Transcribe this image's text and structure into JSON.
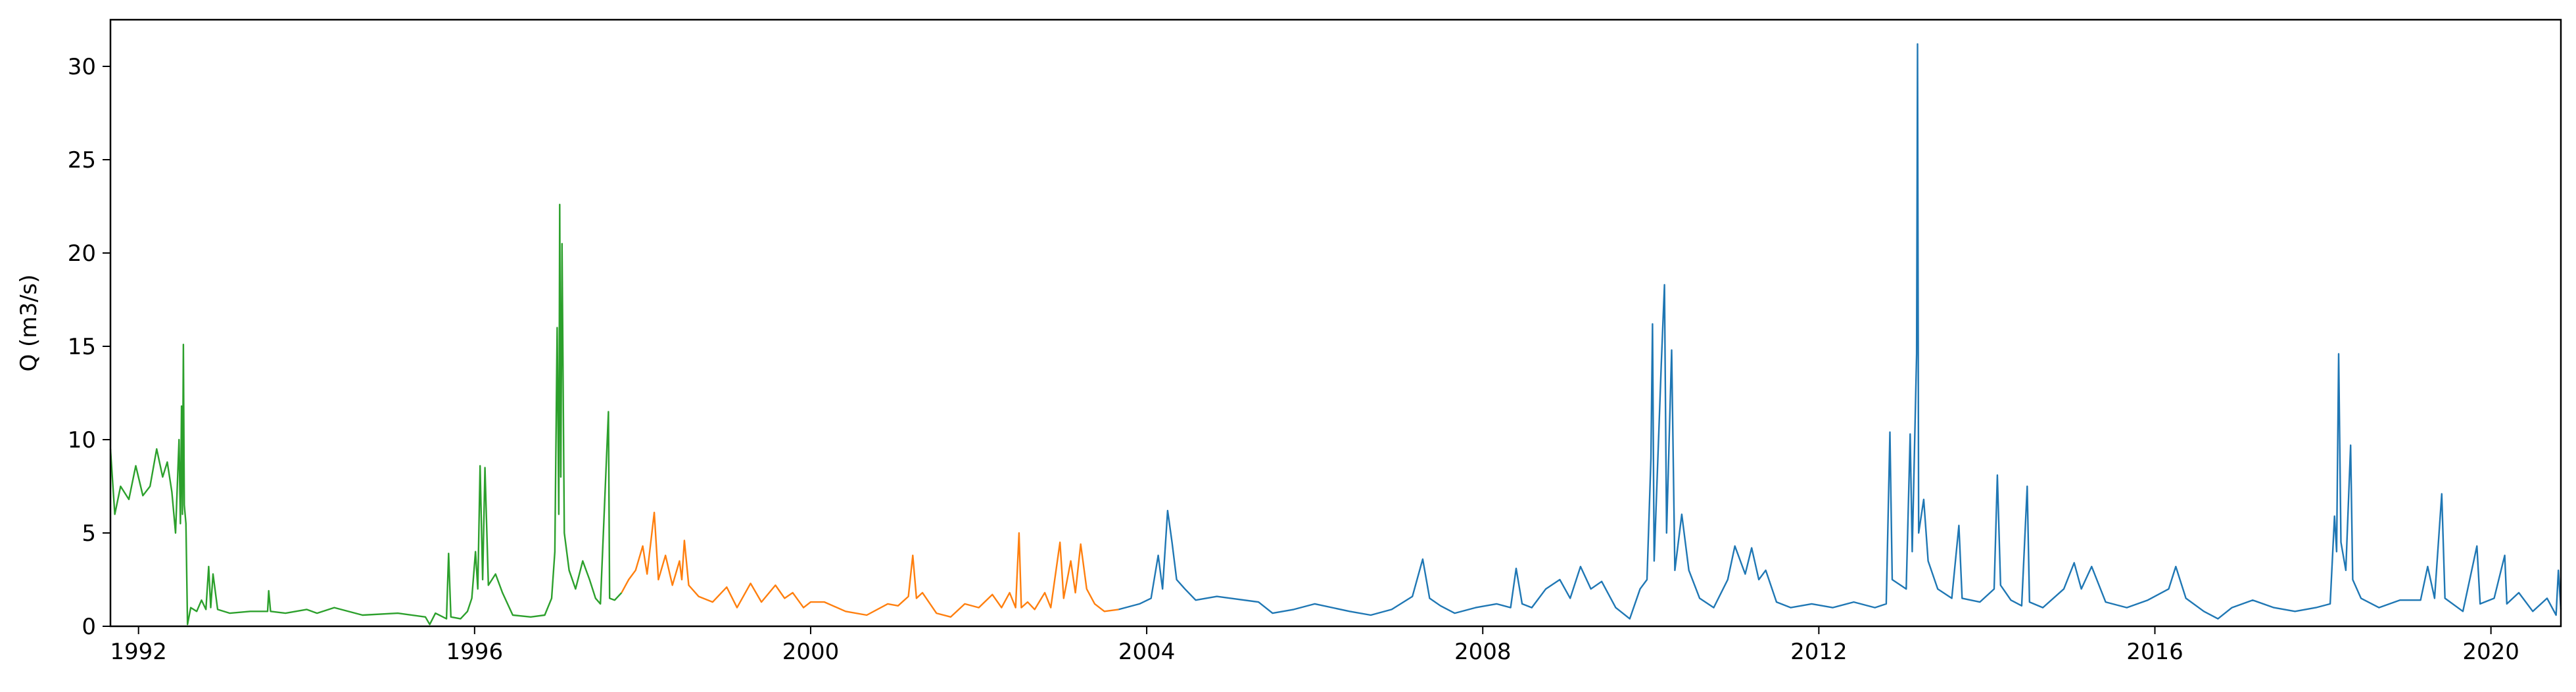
{
  "chart_data": {
    "type": "line",
    "title": "",
    "xlabel": "",
    "ylabel": "Q (m3/s)",
    "xlim": [
      "1991-09-01",
      "2020-10-31"
    ],
    "ylim": [
      0,
      32.5
    ],
    "x_ticks": [
      "1992",
      "1996",
      "2000",
      "2004",
      "2008",
      "2012",
      "2016",
      "2020"
    ],
    "y_ticks": [
      "0",
      "5",
      "10",
      "15",
      "20",
      "25",
      "30"
    ],
    "grid": false,
    "legend": "none",
    "series": [
      {
        "color": "#2ca02c",
        "points": [
          [
            "1991-09-01",
            9.5
          ],
          [
            "1991-09-20",
            6.0
          ],
          [
            "1991-10-15",
            7.5
          ],
          [
            "1991-11-20",
            6.8
          ],
          [
            "1991-12-20",
            8.6
          ],
          [
            "1992-01-20",
            7.0
          ],
          [
            "1992-02-20",
            7.5
          ],
          [
            "1992-03-20",
            9.5
          ],
          [
            "1992-04-15",
            8.0
          ],
          [
            "1992-05-05",
            8.8
          ],
          [
            "1992-05-25",
            7.2
          ],
          [
            "1992-06-10",
            5.0
          ],
          [
            "1992-06-25",
            10.0
          ],
          [
            "1992-07-01",
            5.5
          ],
          [
            "1992-07-06",
            11.8
          ],
          [
            "1992-07-10",
            6.0
          ],
          [
            "1992-07-14",
            15.1
          ],
          [
            "1992-07-18",
            6.5
          ],
          [
            "1992-07-25",
            5.5
          ],
          [
            "1992-08-01",
            0.1
          ],
          [
            "1992-08-15",
            1.0
          ],
          [
            "1992-09-10",
            0.8
          ],
          [
            "1992-10-01",
            1.4
          ],
          [
            "1992-10-20",
            0.9
          ],
          [
            "1992-11-01",
            3.2
          ],
          [
            "1992-11-10",
            1.0
          ],
          [
            "1992-11-20",
            2.8
          ],
          [
            "1992-12-10",
            0.9
          ],
          [
            "1993-02-01",
            0.7
          ],
          [
            "1993-05-01",
            0.8
          ],
          [
            "1993-07-15",
            0.8
          ],
          [
            "1993-07-20",
            1.9
          ],
          [
            "1993-07-28",
            0.8
          ],
          [
            "1993-10-01",
            0.7
          ],
          [
            "1994-01-01",
            0.9
          ],
          [
            "1994-02-15",
            0.7
          ],
          [
            "1994-05-01",
            1.0
          ],
          [
            "1994-09-01",
            0.6
          ],
          [
            "1995-02-01",
            0.7
          ],
          [
            "1995-06-01",
            0.5
          ],
          [
            "1995-06-20",
            0.1
          ],
          [
            "1995-07-15",
            0.7
          ],
          [
            "1995-09-01",
            0.4
          ],
          [
            "1995-09-10",
            3.9
          ],
          [
            "1995-09-20",
            0.5
          ],
          [
            "1995-11-01",
            0.4
          ],
          [
            "1995-12-01",
            0.8
          ],
          [
            "1995-12-20",
            1.5
          ],
          [
            "1996-01-05",
            4.0
          ],
          [
            "1996-01-15",
            2.0
          ],
          [
            "1996-01-25",
            8.6
          ],
          [
            "1996-02-05",
            2.5
          ],
          [
            "1996-02-15",
            8.5
          ],
          [
            "1996-03-01",
            2.2
          ],
          [
            "1996-04-01",
            2.8
          ],
          [
            "1996-05-01",
            1.8
          ],
          [
            "1996-06-15",
            0.6
          ],
          [
            "1996-09-01",
            0.5
          ],
          [
            "1996-11-01",
            0.6
          ],
          [
            "1996-12-01",
            1.5
          ],
          [
            "1996-12-15",
            4.0
          ],
          [
            "1996-12-25",
            16.0
          ],
          [
            "1997-01-01",
            6.0
          ],
          [
            "1997-01-05",
            22.6
          ],
          [
            "1997-01-10",
            8.0
          ],
          [
            "1997-01-15",
            20.5
          ],
          [
            "1997-01-25",
            5.0
          ],
          [
            "1997-02-15",
            3.0
          ],
          [
            "1997-03-15",
            2.0
          ],
          [
            "1997-04-15",
            3.5
          ],
          [
            "1997-05-15",
            2.5
          ],
          [
            "1997-06-10",
            1.5
          ],
          [
            "1997-07-01",
            1.2
          ],
          [
            "1997-08-05",
            11.5
          ],
          [
            "1997-08-10",
            1.5
          ],
          [
            "1997-09-01",
            1.4
          ],
          [
            "1997-10-01",
            1.8
          ]
        ]
      },
      {
        "color": "#ff7f0e",
        "points": [
          [
            "1997-10-01",
            1.8
          ],
          [
            "1997-11-01",
            2.5
          ],
          [
            "1997-12-01",
            3.0
          ],
          [
            "1998-01-01",
            4.3
          ],
          [
            "1998-01-20",
            2.8
          ],
          [
            "1998-02-20",
            6.1
          ],
          [
            "1998-03-10",
            2.5
          ],
          [
            "1998-04-10",
            3.8
          ],
          [
            "1998-05-10",
            2.2
          ],
          [
            "1998-06-10",
            3.5
          ],
          [
            "1998-06-20",
            2.5
          ],
          [
            "1998-07-01",
            4.6
          ],
          [
            "1998-07-20",
            2.2
          ],
          [
            "1998-09-01",
            1.6
          ],
          [
            "1998-11-01",
            1.3
          ],
          [
            "1999-01-01",
            2.1
          ],
          [
            "1999-02-15",
            1.0
          ],
          [
            "1999-04-15",
            2.3
          ],
          [
            "1999-06-01",
            1.3
          ],
          [
            "1999-08-01",
            2.2
          ],
          [
            "1999-09-10",
            1.5
          ],
          [
            "1999-10-15",
            1.8
          ],
          [
            "1999-12-01",
            1.0
          ],
          [
            "2000-01-01",
            1.3
          ],
          [
            "2000-03-01",
            1.3
          ],
          [
            "2000-06-01",
            0.8
          ],
          [
            "2000-09-01",
            0.6
          ],
          [
            "2000-12-01",
            1.2
          ],
          [
            "2001-01-15",
            1.1
          ],
          [
            "2001-03-01",
            1.6
          ],
          [
            "2001-03-20",
            3.8
          ],
          [
            "2001-04-05",
            1.5
          ],
          [
            "2001-05-01",
            1.8
          ],
          [
            "2001-07-01",
            0.7
          ],
          [
            "2001-09-01",
            0.5
          ],
          [
            "2001-11-01",
            1.2
          ],
          [
            "2002-01-01",
            1.0
          ],
          [
            "2002-03-01",
            1.7
          ],
          [
            "2002-04-10",
            1.0
          ],
          [
            "2002-05-15",
            1.8
          ],
          [
            "2002-06-10",
            1.0
          ],
          [
            "2002-06-25",
            5.0
          ],
          [
            "2002-07-05",
            1.0
          ],
          [
            "2002-08-01",
            1.3
          ],
          [
            "2002-09-01",
            0.9
          ],
          [
            "2002-10-15",
            1.8
          ],
          [
            "2002-11-10",
            1.0
          ],
          [
            "2002-12-20",
            4.5
          ],
          [
            "2003-01-05",
            1.5
          ],
          [
            "2003-02-05",
            3.5
          ],
          [
            "2003-02-25",
            1.8
          ],
          [
            "2003-03-20",
            4.4
          ],
          [
            "2003-04-15",
            2.0
          ],
          [
            "2003-05-20",
            1.2
          ],
          [
            "2003-07-01",
            0.8
          ],
          [
            "2003-09-01",
            0.9
          ]
        ]
      },
      {
        "color": "#1f77b4",
        "points": [
          [
            "2003-09-01",
            0.9
          ],
          [
            "2003-12-01",
            1.2
          ],
          [
            "2004-01-20",
            1.5
          ],
          [
            "2004-02-20",
            3.8
          ],
          [
            "2004-03-10",
            2.0
          ],
          [
            "2004-04-01",
            6.2
          ],
          [
            "2004-04-20",
            4.5
          ],
          [
            "2004-05-10",
            2.5
          ],
          [
            "2004-06-15",
            2.0
          ],
          [
            "2004-08-01",
            1.4
          ],
          [
            "2004-11-01",
            1.6
          ],
          [
            "2005-01-01",
            1.5
          ],
          [
            "2005-05-01",
            1.3
          ],
          [
            "2005-07-01",
            0.7
          ],
          [
            "2005-10-01",
            0.9
          ],
          [
            "2006-01-01",
            1.2
          ],
          [
            "2006-06-01",
            0.8
          ],
          [
            "2006-09-01",
            0.6
          ],
          [
            "2006-12-01",
            0.9
          ],
          [
            "2007-03-01",
            1.6
          ],
          [
            "2007-04-15",
            3.6
          ],
          [
            "2007-05-15",
            1.5
          ],
          [
            "2007-07-01",
            1.1
          ],
          [
            "2007-09-01",
            0.7
          ],
          [
            "2007-12-01",
            1.0
          ],
          [
            "2008-03-01",
            1.2
          ],
          [
            "2008-05-01",
            1.0
          ],
          [
            "2008-05-25",
            3.1
          ],
          [
            "2008-06-20",
            1.2
          ],
          [
            "2008-08-01",
            1.0
          ],
          [
            "2008-10-01",
            2.0
          ],
          [
            "2008-12-01",
            2.5
          ],
          [
            "2009-01-15",
            1.5
          ],
          [
            "2009-03-01",
            3.2
          ],
          [
            "2009-04-15",
            2.0
          ],
          [
            "2009-06-01",
            2.4
          ],
          [
            "2009-08-01",
            1.0
          ],
          [
            "2009-10-01",
            0.4
          ],
          [
            "2009-11-15",
            2.0
          ],
          [
            "2009-12-15",
            2.5
          ],
          [
            "2010-01-01",
            9.0
          ],
          [
            "2010-01-08",
            16.2
          ],
          [
            "2010-01-15",
            3.5
          ],
          [
            "2010-02-15",
            14.0
          ],
          [
            "2010-03-01",
            18.3
          ],
          [
            "2010-03-10",
            5.0
          ],
          [
            "2010-04-01",
            14.8
          ],
          [
            "2010-04-15",
            3.0
          ],
          [
            "2010-05-15",
            6.0
          ],
          [
            "2010-06-15",
            3.0
          ],
          [
            "2010-08-01",
            1.5
          ],
          [
            "2010-10-01",
            1.0
          ],
          [
            "2010-12-01",
            2.5
          ],
          [
            "2011-01-01",
            4.3
          ],
          [
            "2011-02-15",
            2.8
          ],
          [
            "2011-03-15",
            4.2
          ],
          [
            "2011-04-15",
            2.5
          ],
          [
            "2011-05-15",
            3.0
          ],
          [
            "2011-07-01",
            1.3
          ],
          [
            "2011-09-01",
            1.0
          ],
          [
            "2011-12-01",
            1.2
          ],
          [
            "2012-03-01",
            1.0
          ],
          [
            "2012-06-01",
            1.3
          ],
          [
            "2012-09-01",
            1.0
          ],
          [
            "2012-10-20",
            1.2
          ],
          [
            "2012-11-05",
            10.4
          ],
          [
            "2012-11-15",
            2.5
          ],
          [
            "2013-01-15",
            2.0
          ],
          [
            "2013-02-01",
            10.3
          ],
          [
            "2013-02-10",
            4.0
          ],
          [
            "2013-03-01",
            14.6
          ],
          [
            "2013-03-05",
            31.2
          ],
          [
            "2013-03-10",
            5.0
          ],
          [
            "2013-04-01",
            6.8
          ],
          [
            "2013-04-20",
            3.5
          ],
          [
            "2013-06-01",
            2.0
          ],
          [
            "2013-08-01",
            1.5
          ],
          [
            "2013-09-01",
            5.4
          ],
          [
            "2013-09-15",
            1.5
          ],
          [
            "2013-12-01",
            1.3
          ],
          [
            "2014-02-01",
            2.0
          ],
          [
            "2014-02-15",
            8.1
          ],
          [
            "2014-03-01",
            2.2
          ],
          [
            "2014-04-15",
            1.4
          ],
          [
            "2014-06-01",
            1.1
          ],
          [
            "2014-06-25",
            7.5
          ],
          [
            "2014-07-05",
            1.3
          ],
          [
            "2014-09-01",
            1.0
          ],
          [
            "2014-12-01",
            2.0
          ],
          [
            "2015-01-15",
            3.4
          ],
          [
            "2015-02-15",
            2.0
          ],
          [
            "2015-04-01",
            3.2
          ],
          [
            "2015-06-01",
            1.3
          ],
          [
            "2015-09-01",
            1.0
          ],
          [
            "2015-12-01",
            1.4
          ],
          [
            "2016-03-01",
            2.0
          ],
          [
            "2016-04-01",
            3.2
          ],
          [
            "2016-05-15",
            1.5
          ],
          [
            "2016-08-01",
            0.8
          ],
          [
            "2016-10-01",
            0.4
          ],
          [
            "2016-12-01",
            1.0
          ],
          [
            "2017-03-01",
            1.4
          ],
          [
            "2017-06-01",
            1.0
          ],
          [
            "2017-09-01",
            0.8
          ],
          [
            "2017-12-01",
            1.0
          ],
          [
            "2018-02-01",
            1.2
          ],
          [
            "2018-02-20",
            5.9
          ],
          [
            "2018-03-01",
            4.0
          ],
          [
            "2018-03-10",
            14.6
          ],
          [
            "2018-03-20",
            4.5
          ],
          [
            "2018-04-10",
            3.0
          ],
          [
            "2018-05-01",
            9.7
          ],
          [
            "2018-05-10",
            2.5
          ],
          [
            "2018-06-15",
            1.5
          ],
          [
            "2018-09-01",
            1.0
          ],
          [
            "2018-12-01",
            1.4
          ],
          [
            "2019-03-01",
            1.4
          ],
          [
            "2019-04-01",
            3.2
          ],
          [
            "2019-05-01",
            1.5
          ],
          [
            "2019-06-01",
            7.1
          ],
          [
            "2019-06-15",
            1.5
          ],
          [
            "2019-09-01",
            0.8
          ],
          [
            "2019-11-01",
            4.3
          ],
          [
            "2019-11-15",
            1.2
          ],
          [
            "2020-01-15",
            1.5
          ],
          [
            "2020-03-01",
            3.8
          ],
          [
            "2020-03-10",
            1.2
          ],
          [
            "2020-05-01",
            1.8
          ],
          [
            "2020-07-01",
            0.8
          ],
          [
            "2020-09-01",
            1.5
          ],
          [
            "2020-10-10",
            0.6
          ],
          [
            "2020-10-20",
            3.0
          ],
          [
            "2020-10-31",
            0.9
          ]
        ]
      }
    ]
  }
}
